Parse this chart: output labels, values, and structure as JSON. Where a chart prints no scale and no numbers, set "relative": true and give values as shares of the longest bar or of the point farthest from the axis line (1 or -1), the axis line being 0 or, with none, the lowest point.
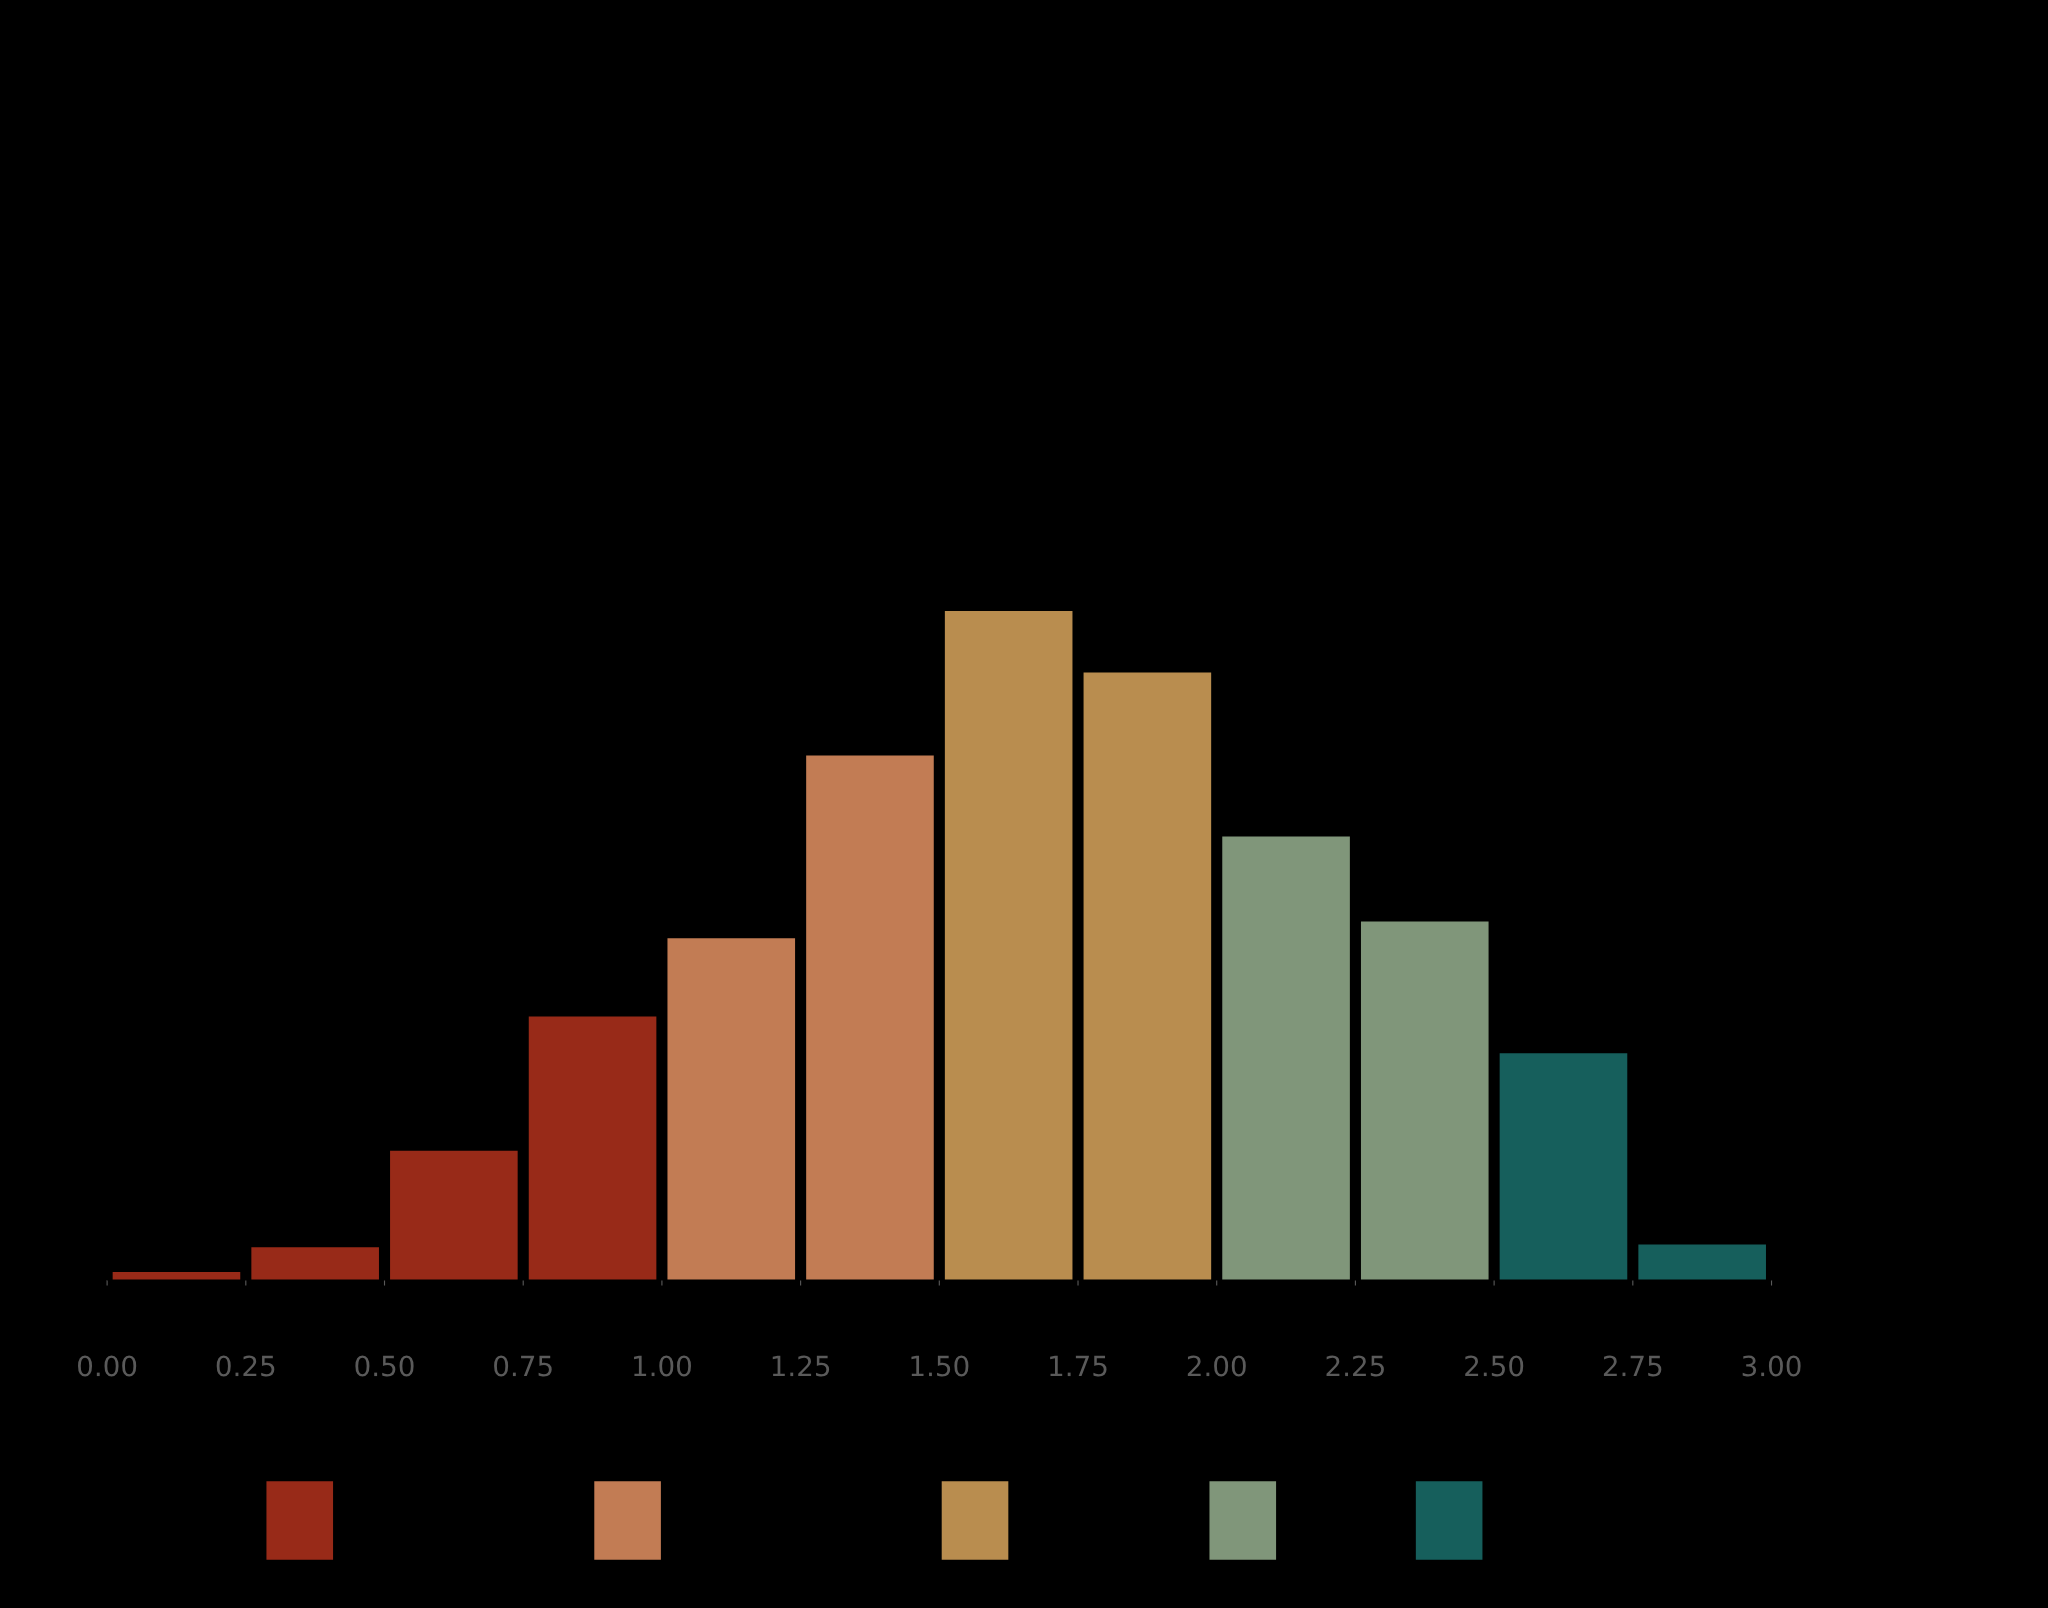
{
  "chart_data": {
    "type": "bar",
    "relative": true,
    "x": [
      0.125,
      0.375,
      0.625,
      0.875,
      1.125,
      1.375,
      1.625,
      1.875,
      2.125,
      2.375,
      2.625,
      2.875
    ],
    "values": [
      0.012,
      0.049,
      0.193,
      0.394,
      0.511,
      0.784,
      1,
      0.908,
      0.663,
      0.536,
      0.339,
      0.053
    ],
    "colors": [
      "#982a18",
      "#982a18",
      "#982a18",
      "#982a18",
      "#c27c54",
      "#c27c54",
      "#b98d4f",
      "#b98d4f",
      "#80967a",
      "#80967a",
      "#165f5c",
      "#165f5c"
    ],
    "xlim": [
      0,
      3
    ],
    "xticks": [
      {
        "value": 0,
        "label": "0.00"
      },
      {
        "value": 0.25,
        "label": "0.25"
      },
      {
        "value": 0.5,
        "label": "0.50"
      },
      {
        "value": 0.75,
        "label": "0.75"
      },
      {
        "value": 1.0,
        "label": "1.00"
      },
      {
        "value": 1.25,
        "label": "1.25"
      },
      {
        "value": 1.5,
        "label": "1.50"
      },
      {
        "value": 1.75,
        "label": "1.75"
      },
      {
        "value": 2.0,
        "label": "2.00"
      },
      {
        "value": 2.25,
        "label": "2.25"
      },
      {
        "value": 2.5,
        "label": "2.50"
      },
      {
        "value": 2.75,
        "label": "2.75"
      },
      {
        "value": 3.0,
        "label": "3.00"
      }
    ],
    "grid": false
  }
}
